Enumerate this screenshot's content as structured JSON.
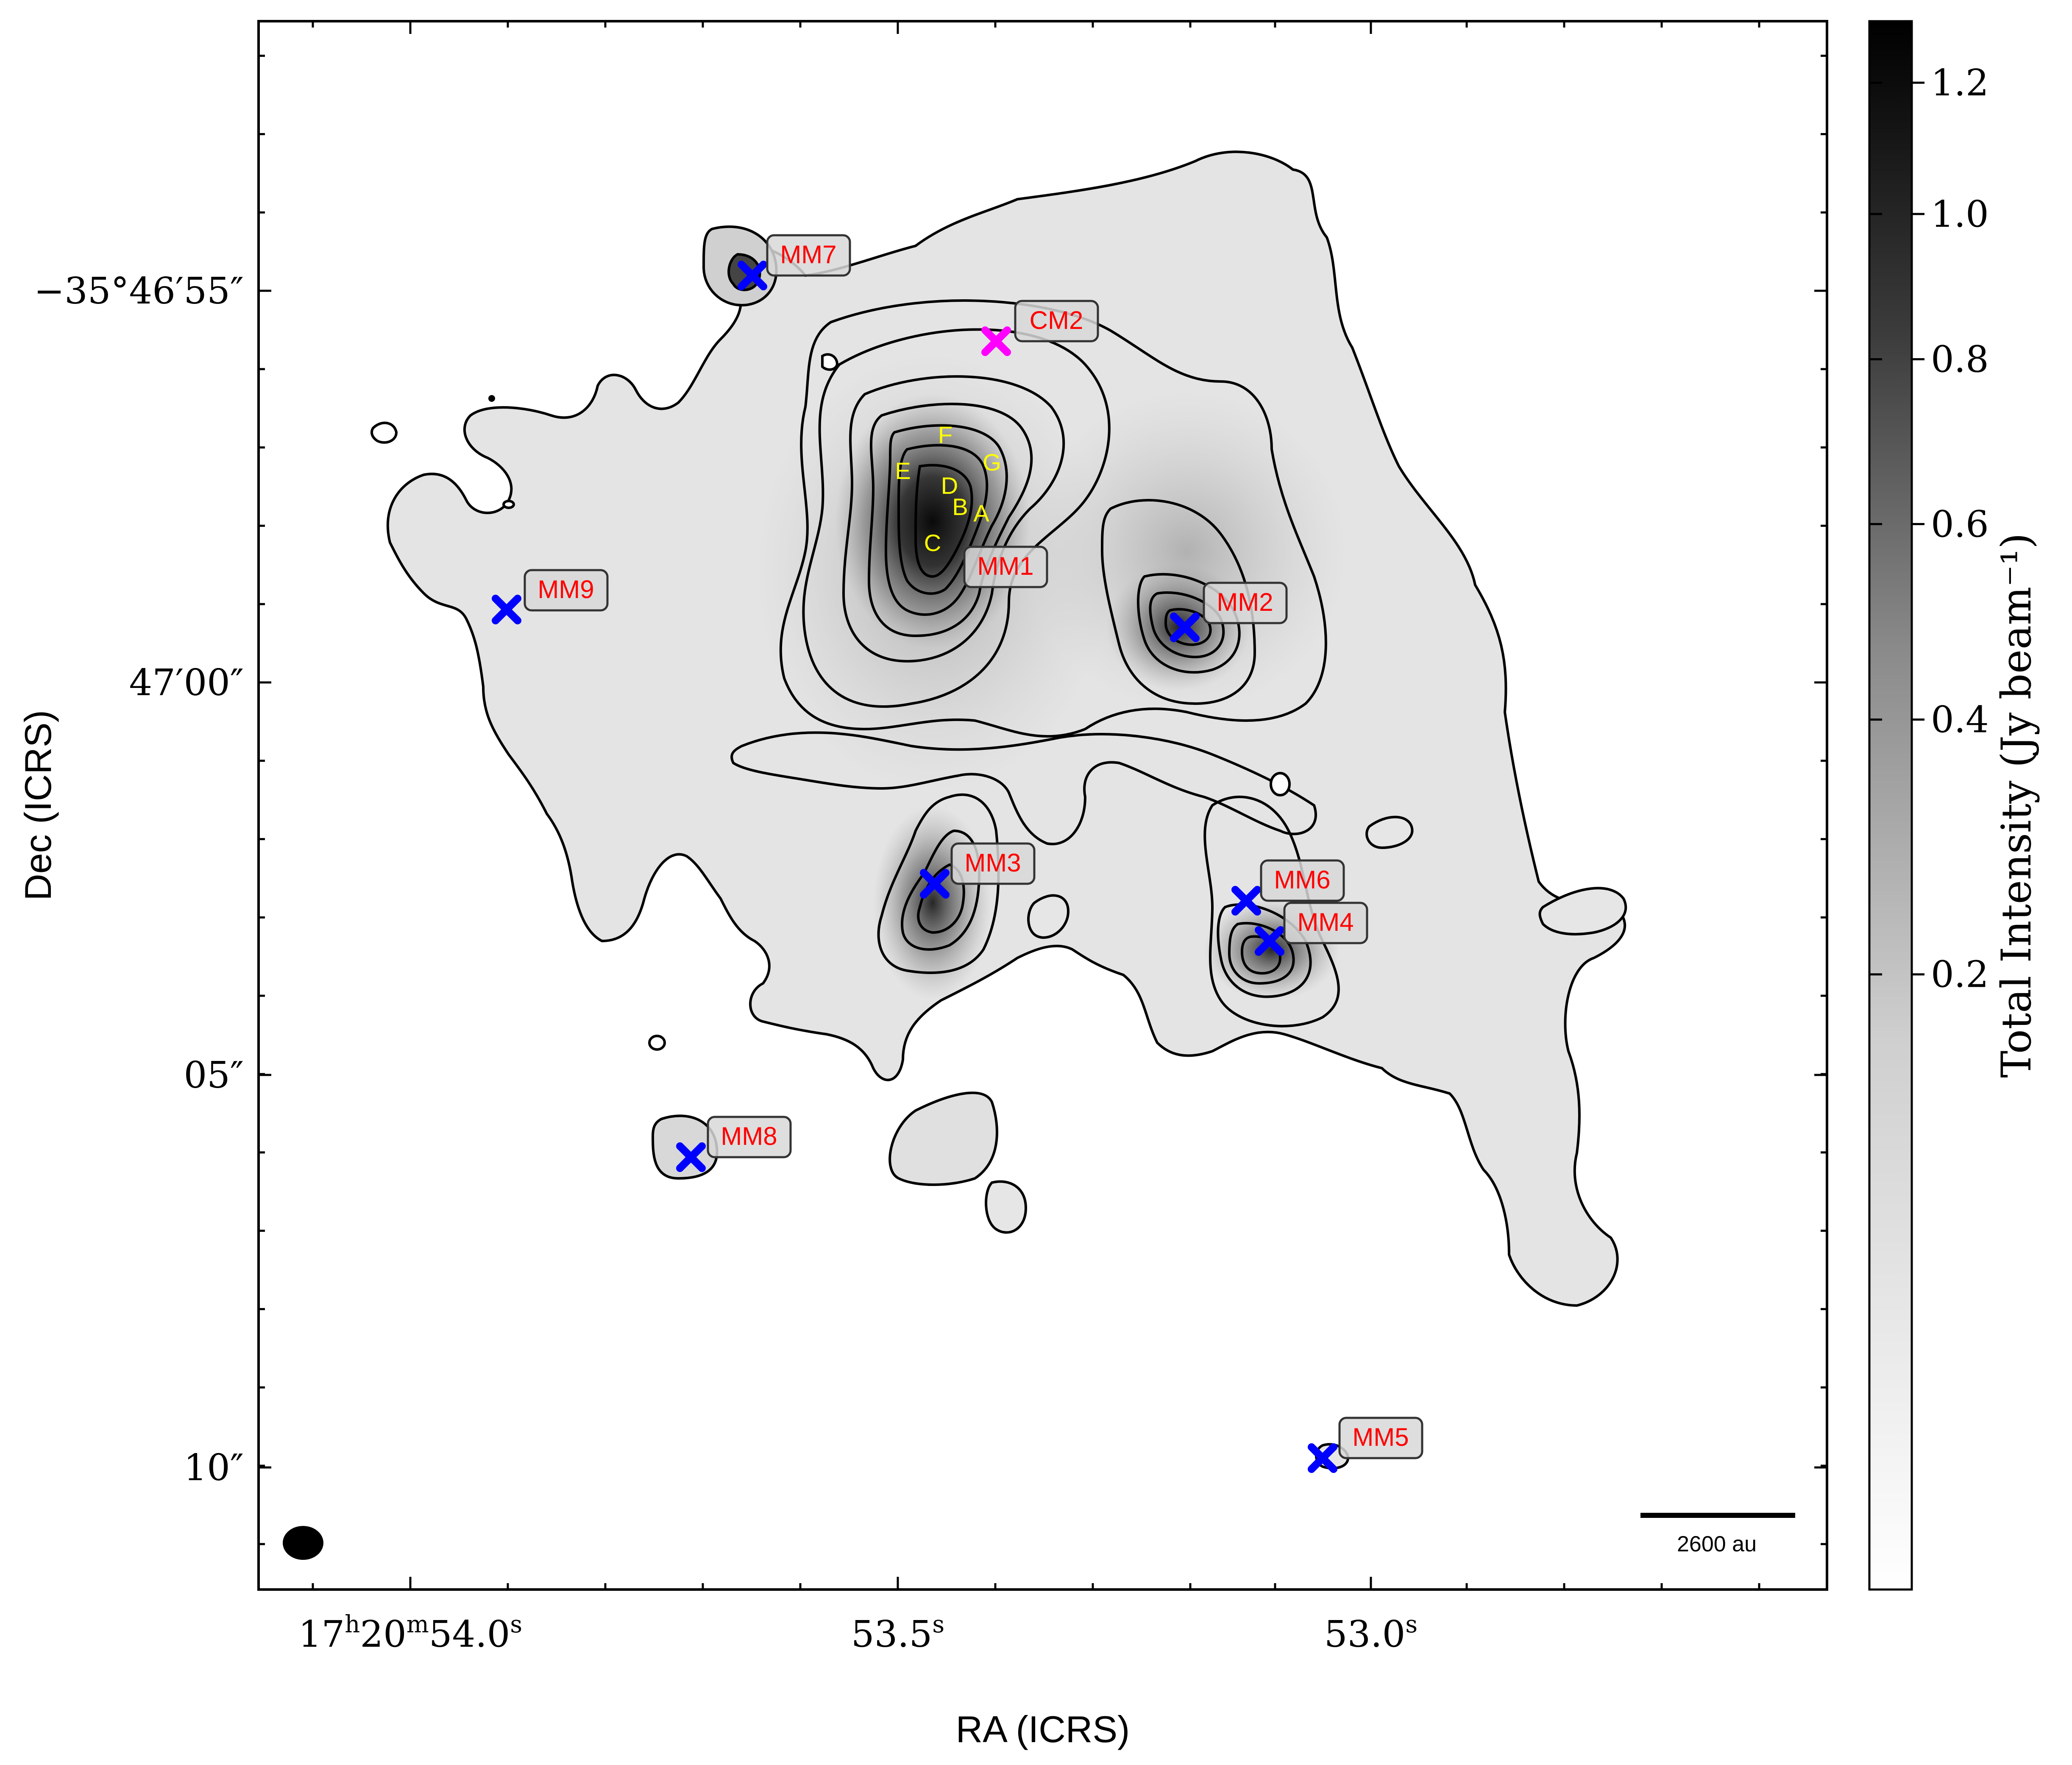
{
  "figure": {
    "x_axis_label": "RA (ICRS)",
    "y_axis_label": "Dec (ICRS)",
    "x_ticks": [
      "17h20m54.0s",
      "53.5s",
      "53.0s"
    ],
    "y_ticks": [
      "−35°46′55″",
      "47′00″",
      "05″",
      "10″"
    ],
    "scale_bar_label": "2600 au",
    "colorbar": {
      "label": "Total Intensity (Jy beam⁻¹)",
      "ticks": [
        {
          "label": "1.2",
          "value": 1.2
        },
        {
          "label": "1.0",
          "value": 1.0
        },
        {
          "label": "0.8",
          "value": 0.8
        },
        {
          "label": "0.6",
          "value": 0.6
        },
        {
          "label": "0.4",
          "value": 0.4
        },
        {
          "label": "0.2",
          "value": 0.2
        }
      ],
      "colormap": [
        "#ffffff",
        "#000000"
      ]
    },
    "sources": [
      {
        "name": "MM1",
        "marker": false,
        "color": "#0000ff"
      },
      {
        "name": "MM2",
        "marker": true,
        "color": "#0000ff"
      },
      {
        "name": "MM3",
        "marker": true,
        "color": "#0000ff"
      },
      {
        "name": "MM4",
        "marker": true,
        "color": "#0000ff"
      },
      {
        "name": "MM5",
        "marker": true,
        "color": "#0000ff"
      },
      {
        "name": "MM6",
        "marker": true,
        "color": "#0000ff"
      },
      {
        "name": "MM7",
        "marker": true,
        "color": "#0000ff"
      },
      {
        "name": "MM8",
        "marker": true,
        "color": "#0000ff"
      },
      {
        "name": "MM9",
        "marker": true,
        "color": "#0000ff"
      },
      {
        "name": "CM2",
        "marker": true,
        "color": "#ff00ff"
      }
    ],
    "label_text_color": "#ff0000",
    "subsource_labels": [
      "A",
      "B",
      "C",
      "D",
      "E",
      "F",
      "G"
    ],
    "subsource_color": "#ffff00"
  }
}
